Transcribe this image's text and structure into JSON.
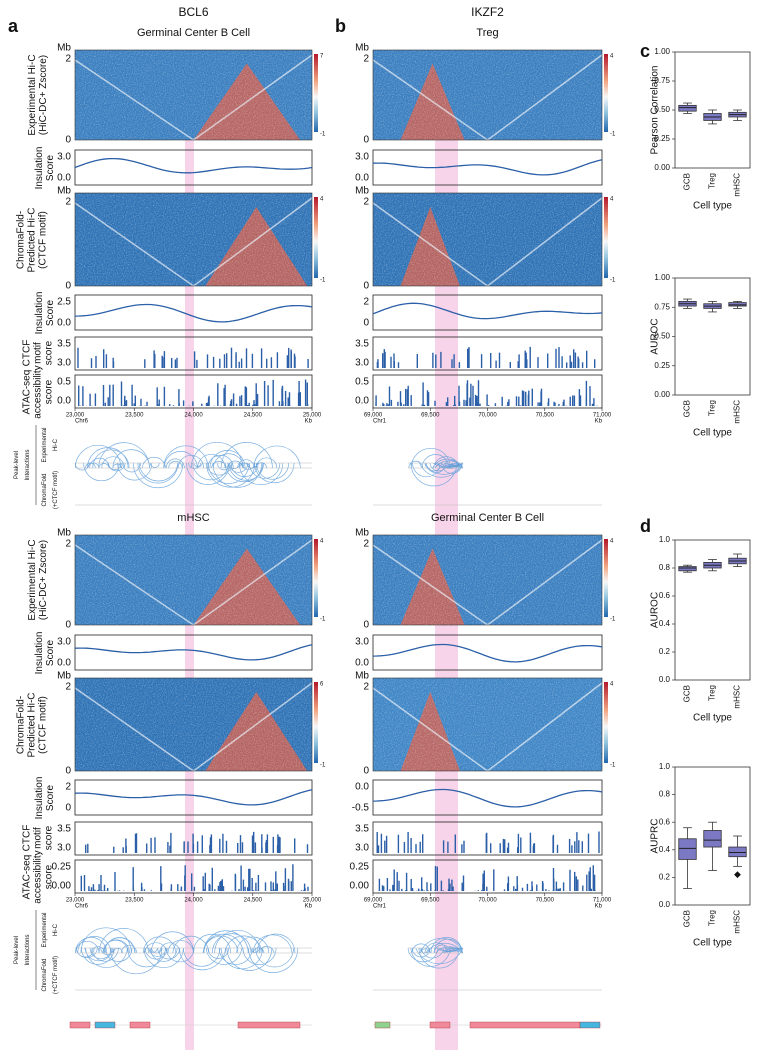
{
  "figure": {
    "mb": "Mb",
    "mb_top": "2",
    "mb_bottom": "0",
    "row_labels": {
      "exp_hic": [
        "Experimental Hi-C",
        "(HiC-DC+ Zscore)"
      ],
      "insulation": [
        "Insulation",
        "Score"
      ],
      "pred_hic": [
        "ChromaFold-",
        "Predicted Hi-C",
        "(CTCF motif)"
      ],
      "ctcf": [
        "CTCF",
        "motif",
        "score"
      ],
      "atac": [
        "ATAC-seq",
        "accessibility",
        "score"
      ],
      "peak": [
        "Peak-level",
        "Interactions"
      ],
      "arc_exp": [
        "Experimental",
        "Hi-C"
      ],
      "arc_pred": [
        "ChromaFold",
        "(+CTCF motif)"
      ]
    },
    "columns": [
      {
        "letter": "a",
        "gene": "BCL6",
        "chrom": "Chr6",
        "xunit": "Kb",
        "xticks": [
          "23,000",
          "23,500",
          "24,000",
          "24,500",
          "25,000"
        ],
        "blocks": [
          {
            "cell": "Germinal Center B Cell",
            "hic_bar": [
              "7",
              "-1"
            ],
            "ins1": [
              "3.0",
              "0.0"
            ],
            "pred_bar": [
              "4",
              "-1"
            ],
            "ins2": [
              "2.5",
              "0.0"
            ],
            "ctcf": [
              "3.5",
              "3.0"
            ],
            "atac": [
              "0.5",
              "0.0"
            ]
          },
          {
            "cell": "mHSC",
            "hic_bar": [
              "4",
              "-1"
            ],
            "ins1": [
              "3.0",
              "0.0"
            ],
            "pred_bar": [
              "6",
              "-1"
            ],
            "ins2": [
              "2",
              "0"
            ],
            "ctcf": [
              "3.5",
              "3.0"
            ],
            "atac": [
              "0.25",
              "0.00"
            ]
          }
        ]
      },
      {
        "letter": "b",
        "gene": "IKZF2",
        "chrom": "Chr1",
        "xunit": "Kb",
        "xticks": [
          "69,000",
          "69,500",
          "70,000",
          "70,500",
          "71,000"
        ],
        "blocks": [
          {
            "cell": "Treg",
            "hic_bar": [
              "4",
              "-1"
            ],
            "ins1": [
              "3.0",
              "0.0"
            ],
            "pred_bar": [
              "4",
              "-1"
            ],
            "ins2": [
              "2",
              "0"
            ],
            "ctcf": [
              "3.5",
              "3.0"
            ],
            "atac": [
              "0.5",
              "0.0"
            ]
          },
          {
            "cell": "Germinal Center B Cell",
            "hic_bar": [
              "4",
              "-1"
            ],
            "ins1": [
              "3.0",
              "0.0"
            ],
            "pred_bar": [
              "4",
              "-1"
            ],
            "ins2": [
              "0.0",
              "-0.5"
            ],
            "ctcf": [
              "3.5",
              "3.0"
            ],
            "atac": [
              "0.25",
              "0.00"
            ]
          }
        ]
      }
    ],
    "panel_c": "c",
    "panel_d": "d"
  },
  "chart_data": [
    {
      "type": "box",
      "ylabel": "Pearson Correlation",
      "xlabel": "Cell type",
      "color": "#7b78c4",
      "categories": [
        "GCB",
        "Treg",
        "mHSC"
      ],
      "whisker_low": [
        0.47,
        0.38,
        0.41
      ],
      "q1": [
        0.49,
        0.41,
        0.44
      ],
      "median": [
        0.52,
        0.44,
        0.46
      ],
      "q3": [
        0.54,
        0.47,
        0.48
      ],
      "whisker_high": [
        0.56,
        0.5,
        0.5
      ],
      "ylim": [
        0,
        1
      ],
      "yticks": [
        {
          "value": 0,
          "label": "0.00"
        },
        0.25,
        {
          "value": 0.5,
          "label": "0.50"
        },
        0.75,
        {
          "value": 1,
          "label": "1.00"
        }
      ]
    },
    {
      "type": "box",
      "ylabel": "AUROC",
      "xlabel": "Cell type",
      "color": "#7b78c4",
      "categories": [
        "GCB",
        "Treg",
        "mHSC"
      ],
      "whisker_low": [
        0.74,
        0.71,
        0.74
      ],
      "q1": [
        0.76,
        0.74,
        0.76
      ],
      "median": [
        0.78,
        0.76,
        0.77
      ],
      "q3": [
        0.8,
        0.78,
        0.79
      ],
      "whisker_high": [
        0.82,
        0.8,
        0.8
      ],
      "ylim": [
        0,
        1
      ],
      "yticks": [
        {
          "value": 0,
          "label": "0.00"
        },
        0.25,
        {
          "value": 0.5,
          "label": "0.50"
        },
        0.75,
        {
          "value": 1,
          "label": "1.00"
        }
      ]
    },
    {
      "type": "box",
      "ylabel": "AUROC",
      "xlabel": "Cell type",
      "color": "#7b78c4",
      "categories": [
        "GCB",
        "Treg",
        "mHSC"
      ],
      "whisker_low": [
        0.77,
        0.78,
        0.81
      ],
      "q1": [
        0.78,
        0.8,
        0.83
      ],
      "median": [
        0.8,
        0.82,
        0.85
      ],
      "q3": [
        0.81,
        0.84,
        0.87
      ],
      "whisker_high": [
        0.82,
        0.86,
        0.9
      ],
      "ylim": [
        0,
        1
      ],
      "yticks": [
        {
          "value": 0,
          "label": "0.0"
        },
        0.2,
        0.4,
        0.6,
        0.8,
        {
          "value": 1,
          "label": "1.0"
        }
      ]
    },
    {
      "type": "box",
      "ylabel": "AUPRC",
      "xlabel": "Cell type",
      "color": "#7b78c4",
      "categories": [
        "GCB",
        "Treg",
        "mHSC"
      ],
      "whisker_low": [
        0.12,
        0.25,
        0.28
      ],
      "q1": [
        0.33,
        0.42,
        0.35
      ],
      "median": [
        0.41,
        0.47,
        0.38
      ],
      "q3": [
        0.48,
        0.54,
        0.42
      ],
      "whisker_high": [
        0.56,
        0.6,
        0.5
      ],
      "outliers": [
        [],
        [],
        [
          0.22
        ]
      ],
      "ylim": [
        0,
        1
      ],
      "yticks": [
        {
          "value": 0,
          "label": "0.0"
        },
        0.2,
        0.4,
        0.6,
        0.8,
        {
          "value": 1,
          "label": "1.0"
        }
      ]
    }
  ]
}
